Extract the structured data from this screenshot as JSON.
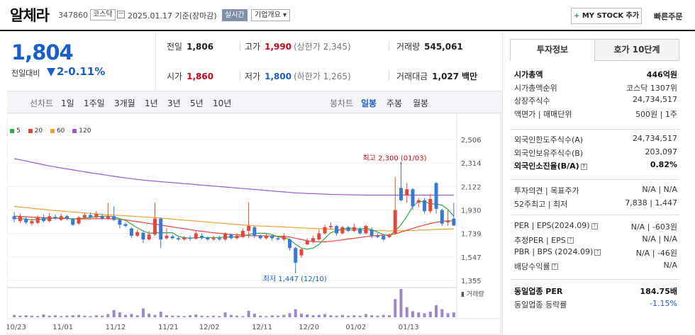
{
  "header": {
    "company_name": "알체라",
    "code": "347860",
    "market": "코스닥",
    "date_label": "2025.01.17 기준(장마감)",
    "live_tag": "실시간",
    "corp_overview": "기업개요 ▾",
    "mystock_label": "MY STOCK 추가",
    "mystock_plus": "+",
    "quick_order": "빠른주문"
  },
  "price": {
    "current": "1,804",
    "diff_label": "전일대비",
    "diff_value": "2",
    "diff_pct": "-0.11%"
  },
  "quotes": {
    "prev_close_label": "전일",
    "prev_close": "1,806",
    "high_label": "고가",
    "high": "1,990",
    "upper_limit": "(상한가 2,345)",
    "volume_label": "거래량",
    "volume": "545,061",
    "open_label": "시가",
    "open": "1,860",
    "low_label": "저가",
    "low": "1,800",
    "lower_limit": "(하한가 1,265)",
    "amount_label": "거래대금",
    "amount": "1,027",
    "amount_unit": "백만"
  },
  "period_bar": {
    "line_label": "선차트",
    "periods": [
      "1일",
      "1주일",
      "3개월",
      "1년",
      "3년",
      "5년",
      "10년"
    ],
    "candle_label": "봉차트",
    "candle_types": [
      "일봉",
      "주봉",
      "월봉"
    ],
    "active_candle": "일봉"
  },
  "legend": [
    {
      "label": "5",
      "color": "#2ea84a"
    },
    {
      "label": "20",
      "color": "#e8453c"
    },
    {
      "label": "60",
      "color": "#f0a030"
    },
    {
      "label": "120",
      "color": "#9b59d0"
    }
  ],
  "chart_data": {
    "type": "candlestick",
    "y_ticks": [
      "2,506",
      "2,314",
      "2,122",
      "1,930",
      "1,739",
      "1,547",
      "1,355"
    ],
    "ylim": [
      1355,
      2506
    ],
    "x_ticks": [
      "10/23",
      "11/01",
      "11/12",
      "11/21",
      "12/02",
      "12/11",
      "12/20",
      "01/02",
      "01/13"
    ],
    "high_annotation": "최고 2,300 (01/03)",
    "low_annotation": "최저 1,447 (12/10)",
    "volume_label": "거래량",
    "colors": {
      "up": "#e8453c",
      "down": "#3a78d6"
    },
    "candles": [
      {
        "o": 1880,
        "c": 1855,
        "h": 1915,
        "l": 1830
      },
      {
        "o": 1840,
        "c": 1880,
        "h": 1900,
        "l": 1825
      },
      {
        "o": 1860,
        "c": 1830,
        "h": 1880,
        "l": 1815
      },
      {
        "o": 1820,
        "c": 1840,
        "h": 1860,
        "l": 1805
      },
      {
        "o": 1825,
        "c": 1870,
        "h": 1885,
        "l": 1815
      },
      {
        "o": 1870,
        "c": 1840,
        "h": 1895,
        "l": 1830
      },
      {
        "o": 1840,
        "c": 1880,
        "h": 1905,
        "l": 1830
      },
      {
        "o": 1875,
        "c": 1860,
        "h": 1895,
        "l": 1850
      },
      {
        "o": 1850,
        "c": 1880,
        "h": 1900,
        "l": 1840
      },
      {
        "o": 1880,
        "c": 1860,
        "h": 1890,
        "l": 1845
      },
      {
        "o": 1855,
        "c": 1810,
        "h": 1865,
        "l": 1800
      },
      {
        "o": 1820,
        "c": 1870,
        "h": 1880,
        "l": 1810
      },
      {
        "o": 1870,
        "c": 1890,
        "h": 1905,
        "l": 1860
      },
      {
        "o": 1890,
        "c": 1870,
        "h": 1910,
        "l": 1865
      },
      {
        "o": 1870,
        "c": 1900,
        "h": 1920,
        "l": 1860
      },
      {
        "o": 1880,
        "c": 1860,
        "h": 1900,
        "l": 1850
      },
      {
        "o": 1860,
        "c": 1880,
        "h": 1990,
        "l": 1850
      },
      {
        "o": 1880,
        "c": 1850,
        "h": 1960,
        "l": 1840
      },
      {
        "o": 1850,
        "c": 1810,
        "h": 1860,
        "l": 1780
      },
      {
        "o": 1815,
        "c": 1800,
        "h": 1830,
        "l": 1790
      },
      {
        "o": 1780,
        "c": 1720,
        "h": 1790,
        "l": 1700
      },
      {
        "o": 1720,
        "c": 1750,
        "h": 1770,
        "l": 1710
      },
      {
        "o": 1745,
        "c": 1690,
        "h": 1760,
        "l": 1660
      },
      {
        "o": 1690,
        "c": 1730,
        "h": 1760,
        "l": 1680
      },
      {
        "o": 1730,
        "c": 1860,
        "h": 1990,
        "l": 1720
      },
      {
        "o": 1860,
        "c": 1690,
        "h": 1870,
        "l": 1620
      },
      {
        "o": 1700,
        "c": 1720,
        "h": 1780,
        "l": 1690
      },
      {
        "o": 1715,
        "c": 1700,
        "h": 1730,
        "l": 1690
      },
      {
        "o": 1700,
        "c": 1690,
        "h": 1710,
        "l": 1680
      },
      {
        "o": 1690,
        "c": 1705,
        "h": 1720,
        "l": 1680
      },
      {
        "o": 1705,
        "c": 1695,
        "h": 1720,
        "l": 1680
      },
      {
        "o": 1695,
        "c": 1740,
        "h": 1760,
        "l": 1690
      },
      {
        "o": 1720,
        "c": 1705,
        "h": 1740,
        "l": 1690
      },
      {
        "o": 1705,
        "c": 1690,
        "h": 1715,
        "l": 1680
      },
      {
        "o": 1690,
        "c": 1700,
        "h": 1720,
        "l": 1680
      },
      {
        "o": 1700,
        "c": 1690,
        "h": 1720,
        "l": 1680
      },
      {
        "o": 1690,
        "c": 1740,
        "h": 1750,
        "l": 1680
      },
      {
        "o": 1730,
        "c": 1700,
        "h": 1740,
        "l": 1690
      },
      {
        "o": 1700,
        "c": 1720,
        "h": 1740,
        "l": 1690
      },
      {
        "o": 1710,
        "c": 1760,
        "h": 1780,
        "l": 1700
      },
      {
        "o": 1760,
        "c": 1800,
        "h": 1990,
        "l": 1700
      },
      {
        "o": 1790,
        "c": 1720,
        "h": 1800,
        "l": 1700
      },
      {
        "o": 1720,
        "c": 1700,
        "h": 1730,
        "l": 1690
      },
      {
        "o": 1700,
        "c": 1720,
        "h": 1740,
        "l": 1690
      },
      {
        "o": 1720,
        "c": 1700,
        "h": 1730,
        "l": 1680
      },
      {
        "o": 1700,
        "c": 1690,
        "h": 1710,
        "l": 1680
      },
      {
        "o": 1690,
        "c": 1720,
        "h": 1740,
        "l": 1680
      },
      {
        "o": 1690,
        "c": 1620,
        "h": 1700,
        "l": 1600
      },
      {
        "o": 1620,
        "c": 1500,
        "h": 1630,
        "l": 1447
      },
      {
        "o": 1560,
        "c": 1610,
        "h": 1620,
        "l": 1540
      },
      {
        "o": 1650,
        "c": 1680,
        "h": 1700,
        "l": 1640
      },
      {
        "o": 1670,
        "c": 1700,
        "h": 1720,
        "l": 1660
      },
      {
        "o": 1690,
        "c": 1740,
        "h": 1770,
        "l": 1680
      },
      {
        "o": 1740,
        "c": 1790,
        "h": 1810,
        "l": 1730
      },
      {
        "o": 1790,
        "c": 1800,
        "h": 1830,
        "l": 1770
      },
      {
        "o": 1800,
        "c": 1740,
        "h": 1810,
        "l": 1720
      },
      {
        "o": 1740,
        "c": 1790,
        "h": 1800,
        "l": 1730
      },
      {
        "o": 1790,
        "c": 1760,
        "h": 1800,
        "l": 1750
      },
      {
        "o": 1760,
        "c": 1790,
        "h": 1820,
        "l": 1750
      },
      {
        "o": 1780,
        "c": 1740,
        "h": 1790,
        "l": 1730
      },
      {
        "o": 1740,
        "c": 1800,
        "h": 1810,
        "l": 1730
      },
      {
        "o": 1770,
        "c": 1720,
        "h": 1790,
        "l": 1700
      },
      {
        "o": 1720,
        "c": 1710,
        "h": 1740,
        "l": 1700
      },
      {
        "o": 1720,
        "c": 1690,
        "h": 1730,
        "l": 1680
      },
      {
        "o": 1710,
        "c": 1730,
        "h": 1740,
        "l": 1700
      },
      {
        "o": 1740,
        "c": 1930,
        "h": 2200,
        "l": 1730
      },
      {
        "o": 2110,
        "c": 2010,
        "h": 2300,
        "l": 2000
      },
      {
        "o": 2050,
        "c": 2100,
        "h": 2150,
        "l": 1990
      },
      {
        "o": 2100,
        "c": 1960,
        "h": 2110,
        "l": 1930
      },
      {
        "o": 1990,
        "c": 2010,
        "h": 2030,
        "l": 1950
      },
      {
        "o": 2010,
        "c": 1920,
        "h": 2030,
        "l": 1900
      },
      {
        "o": 1920,
        "c": 2020,
        "h": 2060,
        "l": 1900
      },
      {
        "o": 2150,
        "c": 1940,
        "h": 2160,
        "l": 1900
      },
      {
        "o": 1930,
        "c": 1820,
        "h": 1940,
        "l": 1800
      },
      {
        "o": 1830,
        "c": 1840,
        "h": 1930,
        "l": 1800
      },
      {
        "o": 1860,
        "c": 1804,
        "h": 1990,
        "l": 1800
      }
    ],
    "ma5": [
      1865,
      1860,
      1855,
      1850,
      1855,
      1855,
      1860,
      1865,
      1865,
      1865,
      1855,
      1860,
      1865,
      1870,
      1875,
      1880,
      1880,
      1875,
      1860,
      1845,
      1815,
      1785,
      1760,
      1740,
      1745,
      1745,
      1745,
      1745,
      1715,
      1705,
      1700,
      1705,
      1705,
      1705,
      1705,
      1705,
      1710,
      1710,
      1710,
      1715,
      1730,
      1740,
      1740,
      1740,
      1730,
      1710,
      1705,
      1690,
      1650,
      1620,
      1610,
      1620,
      1650,
      1700,
      1745,
      1760,
      1775,
      1780,
      1780,
      1775,
      1780,
      1770,
      1750,
      1730,
      1720,
      1760,
      1810,
      1880,
      1960,
      2000,
      2000,
      1980,
      1980,
      1970,
      1935,
      1880
    ],
    "ma20": [
      1880,
      1878,
      1875,
      1872,
      1870,
      1868,
      1866,
      1864,
      1862,
      1860,
      1858,
      1858,
      1858,
      1858,
      1860,
      1860,
      1860,
      1858,
      1855,
      1850,
      1842,
      1835,
      1828,
      1820,
      1815,
      1808,
      1800,
      1792,
      1785,
      1778,
      1770,
      1763,
      1757,
      1750,
      1745,
      1740,
      1735,
      1730,
      1728,
      1725,
      1722,
      1720,
      1720,
      1719,
      1718,
      1716,
      1714,
      1710,
      1700,
      1690,
      1680,
      1672,
      1670,
      1671,
      1675,
      1680,
      1687,
      1694,
      1700,
      1706,
      1712,
      1718,
      1722,
      1725,
      1727,
      1735,
      1750,
      1765,
      1780,
      1795,
      1808,
      1820,
      1830,
      1838,
      1842,
      1842
    ],
    "ma60": [
      1960,
      1955,
      1950,
      1945,
      1940,
      1935,
      1930,
      1926,
      1922,
      1918,
      1914,
      1910,
      1906,
      1902,
      1898,
      1895,
      1892,
      1889,
      1886,
      1883,
      1880,
      1877,
      1874,
      1871,
      1868,
      1864,
      1860,
      1856,
      1852,
      1848,
      1844,
      1840,
      1836,
      1832,
      1828,
      1824,
      1820,
      1816,
      1812,
      1808,
      1805,
      1802,
      1800,
      1798,
      1796,
      1794,
      1792,
      1790,
      1787,
      1784,
      1782,
      1780,
      1778,
      1776,
      1774,
      1772,
      1770,
      1768,
      1766,
      1765,
      1764,
      1763,
      1762,
      1761,
      1760,
      1760,
      1761,
      1762,
      1764,
      1766,
      1768,
      1770,
      1772,
      1774,
      1775,
      1776
    ],
    "ma120": [
      2350,
      2340,
      2330,
      2320,
      2310,
      2300,
      2290,
      2282,
      2274,
      2266,
      2258,
      2250,
      2242,
      2234,
      2227,
      2220,
      2213,
      2206,
      2199,
      2192,
      2186,
      2180,
      2175,
      2170,
      2166,
      2162,
      2158,
      2154,
      2150,
      2146,
      2142,
      2138,
      2134,
      2130,
      2126,
      2122,
      2118,
      2114,
      2110,
      2106,
      2102,
      2098,
      2094,
      2090,
      2086,
      2082,
      2078,
      2074,
      2070,
      2068,
      2066,
      2064,
      2062,
      2060,
      2058,
      2057,
      2056,
      2055,
      2054,
      2053,
      2052,
      2052,
      2052,
      2052,
      2052,
      2052,
      2052,
      2052,
      2052,
      2052,
      2052,
      2052,
      2052,
      2052,
      2052,
      2052
    ],
    "volumes": [
      6,
      4,
      5,
      4,
      3,
      7,
      4,
      5,
      3,
      4,
      5,
      6,
      4,
      3,
      5,
      4,
      8,
      18,
      12,
      6,
      8,
      5,
      22,
      9,
      6,
      14,
      5,
      4,
      4,
      3,
      5,
      7,
      4,
      3,
      4,
      3,
      12,
      6,
      4,
      3,
      16,
      9,
      4,
      3,
      5,
      4,
      6,
      10,
      20,
      9,
      7,
      5,
      6,
      8,
      5,
      4,
      6,
      4,
      5,
      4,
      8,
      5,
      4,
      6,
      5,
      45,
      70,
      25,
      15,
      12,
      10,
      14,
      30,
      20,
      10,
      12
    ]
  },
  "right_panel": {
    "tab_invest": "투자정보",
    "tab_orderbook": "호가 10단계",
    "rows_top": [
      {
        "k": "시가총액",
        "v": "446억원",
        "bold": true
      },
      {
        "k": "시가총액순위",
        "v": "코스닥 1307위"
      },
      {
        "k": "상장주식수",
        "v": "24,734,517"
      },
      {
        "k": "액면가 | 매매단위",
        "v": "500원 | 1주"
      }
    ],
    "rows_foreign": [
      {
        "k": "외국인한도주식수(A)",
        "v": "24,734,517"
      },
      {
        "k": "외국인보유주식수(B)",
        "v": "203,097"
      },
      {
        "k": "외국인소진율(B/A)",
        "v": "0.82%",
        "bold": true,
        "hint": true
      }
    ],
    "rows_opinion": [
      {
        "k": "투자의견 | 목표주가",
        "v": "N/A | N/A"
      },
      {
        "k": "52주최고 | 최저",
        "v": "7,838 | 1,447"
      }
    ],
    "rows_per": [
      {
        "k": "PER | EPS(2024.09)",
        "v": "N/A | -603원",
        "hint": true
      },
      {
        "k": "추정PER | EPS",
        "v": "N/A | N/A",
        "hint": true
      },
      {
        "k": "PBR | BPS (2024.09)",
        "v": "N/A | -46원",
        "hint": true
      },
      {
        "k": "배당수익률",
        "v": "N/A",
        "hint": true
      }
    ],
    "rows_industry": [
      {
        "k": "동일업종 PER",
        "v": "184.75배",
        "bold": true
      },
      {
        "k": "동일업종 등락률",
        "v": "-1.15%",
        "blue": true
      }
    ]
  }
}
